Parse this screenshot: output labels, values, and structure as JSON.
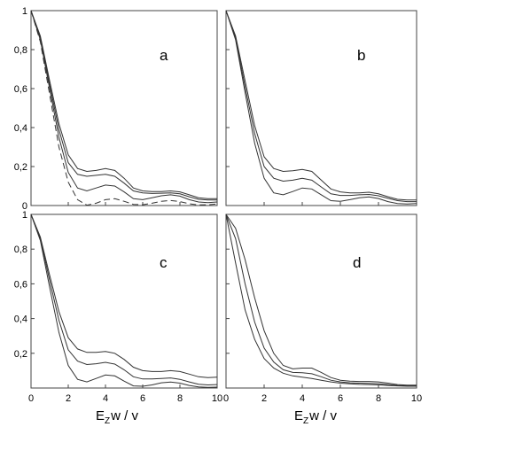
{
  "chart_data": [
    {
      "type": "line",
      "panel_label": "a",
      "xlim": [
        0,
        10
      ],
      "ylim": [
        0,
        1
      ],
      "xticks": [
        "0",
        "2",
        "4",
        "6",
        "8",
        "10"
      ],
      "yticks": [
        "0",
        "0,2",
        "0,4",
        "0,6",
        "0,8",
        "1"
      ],
      "show_xticks": false,
      "show_yticks": true,
      "grid": false,
      "series": [
        {
          "style": "solid",
          "x": [
            0,
            0.5,
            1,
            1.5,
            2,
            2.5,
            3,
            3.5,
            4,
            4.5,
            5,
            5.5,
            6,
            6.5,
            7,
            7.5,
            8,
            8.5,
            9,
            9.5,
            10
          ],
          "y": [
            1,
            0.87,
            0.64,
            0.42,
            0.26,
            0.19,
            0.175,
            0.18,
            0.19,
            0.18,
            0.14,
            0.09,
            0.075,
            0.072,
            0.072,
            0.075,
            0.07,
            0.055,
            0.04,
            0.035,
            0.035
          ]
        },
        {
          "style": "solid",
          "x": [
            0,
            0.5,
            1,
            1.5,
            2,
            2.5,
            3,
            3.5,
            4,
            4.5,
            5,
            5.5,
            6,
            6.5,
            7,
            7.5,
            8,
            8.5,
            9,
            9.5,
            10
          ],
          "y": [
            1,
            0.86,
            0.62,
            0.39,
            0.22,
            0.16,
            0.15,
            0.155,
            0.16,
            0.15,
            0.115,
            0.075,
            0.065,
            0.062,
            0.063,
            0.065,
            0.06,
            0.045,
            0.032,
            0.028,
            0.028
          ]
        },
        {
          "style": "solid",
          "x": [
            0,
            0.5,
            1,
            1.5,
            2,
            2.5,
            3,
            3.5,
            4,
            4.5,
            5,
            5.5,
            6,
            6.5,
            7,
            7.5,
            8,
            8.5,
            9,
            9.5,
            10
          ],
          "y": [
            1,
            0.85,
            0.6,
            0.35,
            0.17,
            0.09,
            0.075,
            0.09,
            0.105,
            0.1,
            0.07,
            0.035,
            0.03,
            0.04,
            0.05,
            0.055,
            0.048,
            0.03,
            0.018,
            0.015,
            0.018
          ]
        },
        {
          "style": "dashed",
          "x": [
            0,
            0.5,
            1,
            1.5,
            2,
            2.5,
            3,
            3.5,
            4,
            4.5,
            5,
            5.5,
            6,
            6.5,
            7,
            7.5,
            8,
            8.5,
            9,
            9.5,
            10
          ],
          "y": [
            1,
            0.84,
            0.57,
            0.3,
            0.12,
            0.03,
            0.002,
            0.012,
            0.03,
            0.035,
            0.022,
            0.006,
            0.004,
            0.012,
            0.022,
            0.026,
            0.02,
            0.009,
            0.003,
            0.004,
            0.008
          ]
        }
      ]
    },
    {
      "type": "line",
      "panel_label": "b",
      "xlim": [
        0,
        10
      ],
      "ylim": [
        0,
        1
      ],
      "xticks": [
        "0",
        "2",
        "4",
        "6",
        "8",
        "10"
      ],
      "yticks": [
        "0",
        "0,2",
        "0,4",
        "0,6",
        "0,8",
        "1"
      ],
      "show_xticks": false,
      "show_yticks": false,
      "grid": false,
      "series": [
        {
          "style": "solid",
          "x": [
            0,
            0.5,
            1,
            1.5,
            2,
            2.5,
            3,
            3.5,
            4,
            4.5,
            5,
            5.5,
            6,
            6.5,
            7,
            7.5,
            8,
            8.5,
            9,
            9.5,
            10
          ],
          "y": [
            1,
            0.87,
            0.64,
            0.41,
            0.25,
            0.19,
            0.175,
            0.178,
            0.185,
            0.175,
            0.13,
            0.085,
            0.07,
            0.065,
            0.065,
            0.068,
            0.06,
            0.045,
            0.032,
            0.028,
            0.028
          ]
        },
        {
          "style": "solid",
          "x": [
            0,
            0.5,
            1,
            1.5,
            2,
            2.5,
            3,
            3.5,
            4,
            4.5,
            5,
            5.5,
            6,
            6.5,
            7,
            7.5,
            8,
            8.5,
            9,
            9.5,
            10
          ],
          "y": [
            1,
            0.86,
            0.61,
            0.37,
            0.2,
            0.14,
            0.125,
            0.13,
            0.14,
            0.13,
            0.095,
            0.06,
            0.052,
            0.052,
            0.055,
            0.057,
            0.05,
            0.037,
            0.025,
            0.02,
            0.02
          ]
        },
        {
          "style": "solid",
          "x": [
            0,
            0.5,
            1,
            1.5,
            2,
            2.5,
            3,
            3.5,
            4,
            4.5,
            5,
            5.5,
            6,
            6.5,
            7,
            7.5,
            8,
            8.5,
            9,
            9.5,
            10
          ],
          "y": [
            1,
            0.85,
            0.58,
            0.32,
            0.14,
            0.065,
            0.055,
            0.072,
            0.09,
            0.085,
            0.055,
            0.025,
            0.022,
            0.03,
            0.04,
            0.044,
            0.036,
            0.02,
            0.01,
            0.008,
            0.01
          ]
        }
      ]
    },
    {
      "type": "line",
      "panel_label": "c",
      "xlim": [
        0,
        10
      ],
      "ylim": [
        0,
        1
      ],
      "xticks": [
        "0",
        "2",
        "4",
        "6",
        "8",
        "10"
      ],
      "yticks": [
        "",
        "0,2",
        "0,4",
        "0,6",
        "0,8",
        "1"
      ],
      "show_xticks": true,
      "show_yticks": true,
      "grid": false,
      "series": [
        {
          "style": "solid",
          "x": [
            0,
            0.5,
            1,
            1.5,
            2,
            2.5,
            3,
            3.5,
            4,
            4.5,
            5,
            5.5,
            6,
            6.5,
            7,
            7.5,
            8,
            8.5,
            9,
            9.5,
            10
          ],
          "y": [
            1,
            0.87,
            0.65,
            0.44,
            0.29,
            0.225,
            0.205,
            0.205,
            0.21,
            0.2,
            0.165,
            0.12,
            0.1,
            0.095,
            0.095,
            0.1,
            0.095,
            0.08,
            0.065,
            0.06,
            0.062
          ]
        },
        {
          "style": "solid",
          "x": [
            0,
            0.5,
            1,
            1.5,
            2,
            2.5,
            3,
            3.5,
            4,
            4.5,
            5,
            5.5,
            6,
            6.5,
            7,
            7.5,
            8,
            8.5,
            9,
            9.5,
            10
          ],
          "y": [
            1,
            0.86,
            0.62,
            0.39,
            0.22,
            0.155,
            0.135,
            0.14,
            0.148,
            0.138,
            0.105,
            0.065,
            0.052,
            0.052,
            0.055,
            0.058,
            0.05,
            0.035,
            0.022,
            0.018,
            0.02
          ]
        },
        {
          "style": "solid",
          "x": [
            0,
            0.5,
            1,
            1.5,
            2,
            2.5,
            3,
            3.5,
            4,
            4.5,
            5,
            5.5,
            6,
            6.5,
            7,
            7.5,
            8,
            8.5,
            9,
            9.5,
            10
          ],
          "y": [
            1,
            0.85,
            0.58,
            0.32,
            0.13,
            0.05,
            0.035,
            0.055,
            0.075,
            0.07,
            0.04,
            0.012,
            0.01,
            0.018,
            0.03,
            0.034,
            0.028,
            0.015,
            0.006,
            0.004,
            0.005
          ]
        }
      ]
    },
    {
      "type": "line",
      "panel_label": "d",
      "xlim": [
        0,
        10
      ],
      "ylim": [
        0,
        1
      ],
      "xticks": [
        "0",
        "2",
        "4",
        "6",
        "8",
        "10"
      ],
      "yticks": [
        "",
        "0,2",
        "0,4",
        "0,6",
        "0,8",
        "1"
      ],
      "show_xticks": true,
      "show_yticks": false,
      "grid": false,
      "series": [
        {
          "style": "solid",
          "x": [
            0,
            0.5,
            1,
            1.5,
            2,
            2.5,
            3,
            3.5,
            4,
            4.5,
            5,
            5.5,
            6,
            6.5,
            7,
            7.5,
            8,
            8.5,
            9,
            9.5,
            10
          ],
          "y": [
            1,
            0.92,
            0.74,
            0.52,
            0.33,
            0.2,
            0.13,
            0.11,
            0.115,
            0.115,
            0.09,
            0.06,
            0.045,
            0.04,
            0.038,
            0.038,
            0.035,
            0.028,
            0.02,
            0.017,
            0.017
          ]
        },
        {
          "style": "solid",
          "x": [
            0,
            0.5,
            1,
            1.5,
            2,
            2.5,
            3,
            3.5,
            4,
            4.5,
            5,
            5.5,
            6,
            6.5,
            7,
            7.5,
            8,
            8.5,
            9,
            9.5,
            10
          ],
          "y": [
            1,
            0.86,
            0.6,
            0.38,
            0.23,
            0.15,
            0.105,
            0.09,
            0.088,
            0.082,
            0.065,
            0.045,
            0.035,
            0.03,
            0.028,
            0.027,
            0.025,
            0.02,
            0.015,
            0.013,
            0.013
          ]
        },
        {
          "style": "solid",
          "x": [
            0,
            0.5,
            1,
            1.5,
            2,
            2.5,
            3,
            3.5,
            4,
            4.5,
            5,
            5.5,
            6,
            6.5,
            7,
            7.5,
            8,
            8.5,
            9,
            9.5,
            10
          ],
          "y": [
            1,
            0.72,
            0.45,
            0.28,
            0.17,
            0.115,
            0.085,
            0.07,
            0.062,
            0.055,
            0.045,
            0.035,
            0.028,
            0.024,
            0.021,
            0.02,
            0.018,
            0.015,
            0.012,
            0.01,
            0.01
          ]
        }
      ]
    }
  ],
  "x_axis_label": {
    "main": "E",
    "subscript": "Z",
    "rest": "w / v"
  }
}
